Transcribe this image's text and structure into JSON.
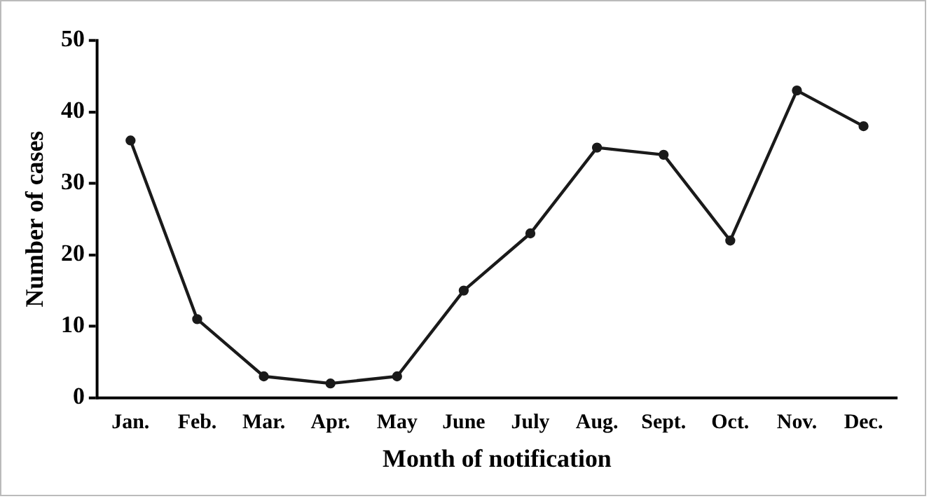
{
  "chart_data": {
    "type": "line",
    "xlabel": "Month of notification",
    "ylabel": "Number of cases",
    "categories": [
      "Jan.",
      "Feb.",
      "Mar.",
      "Apr.",
      "May",
      "June",
      "July",
      "Aug.",
      "Sept.",
      "Oct.",
      "Nov.",
      "Dec."
    ],
    "series": [
      {
        "color": "#1a1a1a",
        "values": [
          36,
          11,
          3,
          2,
          3,
          15,
          23,
          35,
          34,
          22,
          43,
          38
        ]
      }
    ],
    "ylim": [
      0,
      50
    ],
    "yticks": [
      0,
      10,
      20,
      30,
      40,
      50
    ],
    "grid": false,
    "legend": false,
    "marker": "circle",
    "line_style": "solid"
  }
}
